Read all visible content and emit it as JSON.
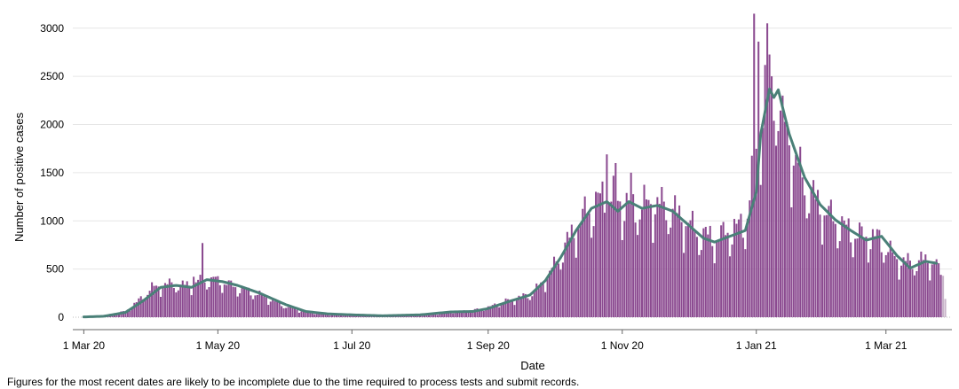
{
  "chart_data": {
    "type": "bar",
    "xlabel": "Date",
    "ylabel": "Number of positive cases",
    "ylim": [
      0,
      3200
    ],
    "xlim": [
      "2020-02-25",
      "2021-03-31"
    ],
    "y_ticks": [
      0,
      500,
      1000,
      1500,
      2000,
      2500,
      3000
    ],
    "x_ticks": [
      {
        "date": "2020-03-01",
        "label": "1 Mar 20"
      },
      {
        "date": "2020-05-01",
        "label": "1 May 20"
      },
      {
        "date": "2020-07-01",
        "label": "1 Jul 20"
      },
      {
        "date": "2020-09-01",
        "label": "1 Sep 20"
      },
      {
        "date": "2020-11-01",
        "label": "1 Nov 20"
      },
      {
        "date": "2021-01-01",
        "label": "1 Jan 21"
      },
      {
        "date": "2021-03-01",
        "label": "1 Mar 21"
      }
    ],
    "grid": "horizontal",
    "legend": "none",
    "bar_color": "#8b4a90",
    "incomplete_bar_color": "#c8b4c9",
    "average_line_color": "#4a8078",
    "incomplete_from": "2021-03-25",
    "series": [
      {
        "type": "bar",
        "keypoints": [
          [
            "2020-03-01",
            2
          ],
          [
            "2020-03-10",
            15
          ],
          [
            "2020-03-20",
            60
          ],
          [
            "2020-03-25",
            150
          ],
          [
            "2020-04-01",
            300
          ],
          [
            "2020-04-10",
            340
          ],
          [
            "2020-04-15",
            320
          ],
          [
            "2020-04-22",
            360
          ],
          [
            "2020-04-26",
            380
          ],
          [
            "2020-05-03",
            360
          ],
          [
            "2020-05-10",
            300
          ],
          [
            "2020-05-20",
            230
          ],
          [
            "2020-06-01",
            110
          ],
          [
            "2020-06-10",
            50
          ],
          [
            "2020-06-20",
            30
          ],
          [
            "2020-07-01",
            22
          ],
          [
            "2020-07-15",
            14
          ],
          [
            "2020-08-01",
            20
          ],
          [
            "2020-08-15",
            50
          ],
          [
            "2020-08-25",
            70
          ],
          [
            "2020-09-01",
            100
          ],
          [
            "2020-09-10",
            170
          ],
          [
            "2020-09-20",
            230
          ],
          [
            "2020-09-25",
            330
          ],
          [
            "2020-10-01",
            520
          ],
          [
            "2020-10-08",
            800
          ],
          [
            "2020-10-15",
            1050
          ],
          [
            "2020-10-22",
            1200
          ],
          [
            "2020-10-28",
            1250
          ],
          [
            "2020-11-01",
            1150
          ],
          [
            "2020-11-08",
            1120
          ],
          [
            "2020-11-15",
            1160
          ],
          [
            "2020-11-22",
            1110
          ],
          [
            "2020-11-29",
            1000
          ],
          [
            "2020-12-06",
            850
          ],
          [
            "2020-12-13",
            800
          ],
          [
            "2020-12-20",
            880
          ],
          [
            "2020-12-27",
            950
          ],
          [
            "2021-01-01",
            1700
          ],
          [
            "2021-01-05",
            2350
          ],
          [
            "2021-01-10",
            2300
          ],
          [
            "2021-01-15",
            1850
          ],
          [
            "2021-01-22",
            1400
          ],
          [
            "2021-01-29",
            1150
          ],
          [
            "2021-02-05",
            1000
          ],
          [
            "2021-02-12",
            880
          ],
          [
            "2021-02-19",
            820
          ],
          [
            "2021-02-26",
            800
          ],
          [
            "2021-03-05",
            600
          ],
          [
            "2021-03-12",
            550
          ],
          [
            "2021-03-19",
            580
          ],
          [
            "2021-03-24",
            560
          ]
        ],
        "spikes": [
          [
            "2020-04-24",
            770
          ],
          [
            "2020-12-31",
            3150
          ],
          [
            "2021-01-02",
            2860
          ],
          [
            "2021-01-06",
            3050
          ],
          [
            "2021-01-08",
            2500
          ],
          [
            "2020-10-25",
            1690
          ],
          [
            "2020-10-29",
            1600
          ],
          [
            "2020-11-05",
            1500
          ],
          [
            "2021-01-13",
            2300
          ],
          [
            "2020-04-30",
            420
          ],
          [
            "2020-04-20",
            420
          ]
        ],
        "last_values": [
          [
            "2021-03-25",
            560
          ],
          [
            "2021-03-26",
            440
          ],
          [
            "2021-03-27",
            430
          ],
          [
            "2021-03-28",
            190
          ]
        ]
      },
      {
        "type": "line",
        "keypoints": [
          [
            "2020-03-01",
            3
          ],
          [
            "2020-03-10",
            10
          ],
          [
            "2020-03-20",
            50
          ],
          [
            "2020-03-28",
            170
          ],
          [
            "2020-04-05",
            310
          ],
          [
            "2020-04-12",
            330
          ],
          [
            "2020-04-19",
            310
          ],
          [
            "2020-04-26",
            390
          ],
          [
            "2020-05-03",
            370
          ],
          [
            "2020-05-10",
            330
          ],
          [
            "2020-05-20",
            250
          ],
          [
            "2020-06-01",
            130
          ],
          [
            "2020-06-10",
            60
          ],
          [
            "2020-06-20",
            35
          ],
          [
            "2020-07-01",
            25
          ],
          [
            "2020-07-15",
            15
          ],
          [
            "2020-08-01",
            25
          ],
          [
            "2020-08-15",
            55
          ],
          [
            "2020-08-25",
            60
          ],
          [
            "2020-09-01",
            90
          ],
          [
            "2020-09-10",
            160
          ],
          [
            "2020-09-20",
            230
          ],
          [
            "2020-09-27",
            380
          ],
          [
            "2020-10-04",
            620
          ],
          [
            "2020-10-11",
            900
          ],
          [
            "2020-10-18",
            1130
          ],
          [
            "2020-10-25",
            1200
          ],
          [
            "2020-10-30",
            1100
          ],
          [
            "2020-11-04",
            1200
          ],
          [
            "2020-11-10",
            1130
          ],
          [
            "2020-11-17",
            1160
          ],
          [
            "2020-11-24",
            1100
          ],
          [
            "2020-12-01",
            960
          ],
          [
            "2020-12-08",
            820
          ],
          [
            "2020-12-13",
            780
          ],
          [
            "2020-12-20",
            840
          ],
          [
            "2020-12-27",
            900
          ],
          [
            "2021-01-01",
            1300
          ],
          [
            "2021-01-03",
            1900
          ],
          [
            "2021-01-07",
            2370
          ],
          [
            "2021-01-09",
            2280
          ],
          [
            "2021-01-11",
            2360
          ],
          [
            "2021-01-16",
            1900
          ],
          [
            "2021-01-23",
            1450
          ],
          [
            "2021-01-30",
            1170
          ],
          [
            "2021-02-06",
            1010
          ],
          [
            "2021-02-13",
            900
          ],
          [
            "2021-02-20",
            800
          ],
          [
            "2021-02-27",
            840
          ],
          [
            "2021-03-06",
            640
          ],
          [
            "2021-03-12",
            510
          ],
          [
            "2021-03-19",
            580
          ],
          [
            "2021-03-24",
            560
          ]
        ]
      }
    ]
  },
  "footnote": "Figures for the most recent dates are likely to be incomplete due to the time required to process tests and submit records."
}
